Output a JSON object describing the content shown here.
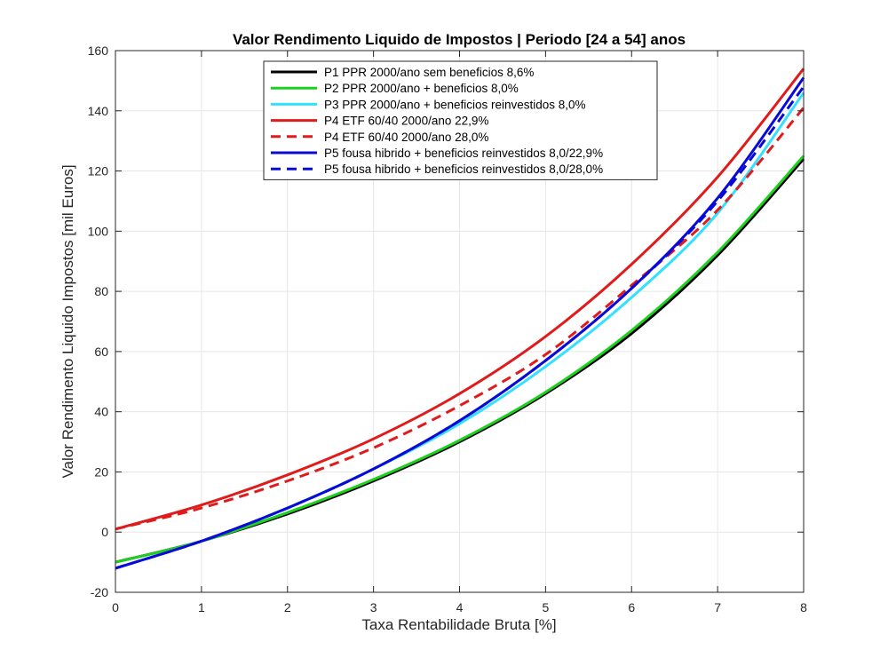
{
  "chart_data": {
    "type": "line",
    "title": "Valor Rendimento Liquido de Impostos | Periodo [24 a 54] anos",
    "xlabel": "Taxa Rentabilidade Bruta [%]",
    "ylabel": "Valor Rendimento Liquido Impostos [mil Euros]",
    "xlim": [
      0,
      8
    ],
    "ylim": [
      -20,
      160
    ],
    "xticks": [
      0,
      1,
      2,
      3,
      4,
      5,
      6,
      7,
      8
    ],
    "yticks": [
      -20,
      0,
      20,
      40,
      60,
      80,
      100,
      120,
      140,
      160
    ],
    "grid": true,
    "legend_position": "top",
    "x": [
      0,
      1,
      2,
      3,
      4,
      5,
      6,
      7,
      8
    ],
    "series": [
      {
        "name": "P1 PPR 2000/ano sem beneficios 8,6%",
        "color": "#000000",
        "dash": "solid",
        "values": [
          -10,
          -3,
          6,
          17,
          30,
          46,
          66,
          92,
          124
        ]
      },
      {
        "name": "P2 PPR 2000/ano + beneficios 8,0%",
        "color": "#1fd11f",
        "dash": "solid",
        "values": [
          -10,
          -3,
          6.5,
          17.5,
          30.5,
          46.5,
          67,
          93,
          125
        ]
      },
      {
        "name": "P3 PPR 2000/ano + beneficios reinvestidos 8,0%",
        "color": "#33e0ff",
        "dash": "solid",
        "values": [
          -12,
          -3,
          8,
          21,
          36,
          55,
          78,
          106,
          146
        ]
      },
      {
        "name": "P4 ETF 60/40 2000/ano 22,9%",
        "color": "#e01b1b",
        "dash": "solid",
        "values": [
          1,
          9,
          19,
          31,
          46,
          65,
          89,
          118,
          154
        ]
      },
      {
        "name": "P4 ETF 60/40 2000/ano 28,0%",
        "color": "#e01b1b",
        "dash": "dashed",
        "values": [
          1,
          8,
          17,
          28,
          42,
          59,
          82,
          107,
          141
        ]
      },
      {
        "name": "P5 fousa hibrido + beneficios reinvestidos 8,0/22,9%",
        "color": "#0a0ad6",
        "dash": "solid",
        "values": [
          -12,
          -3,
          8,
          21,
          37,
          57,
          81,
          111,
          151
        ]
      },
      {
        "name": "P5 fousa hibrido + beneficios reinvestidos 8,0/28,0%",
        "color": "#0a0ad6",
        "dash": "dashed",
        "values": [
          -12,
          -3,
          8,
          21,
          37,
          57,
          81,
          110,
          148
        ]
      }
    ]
  }
}
